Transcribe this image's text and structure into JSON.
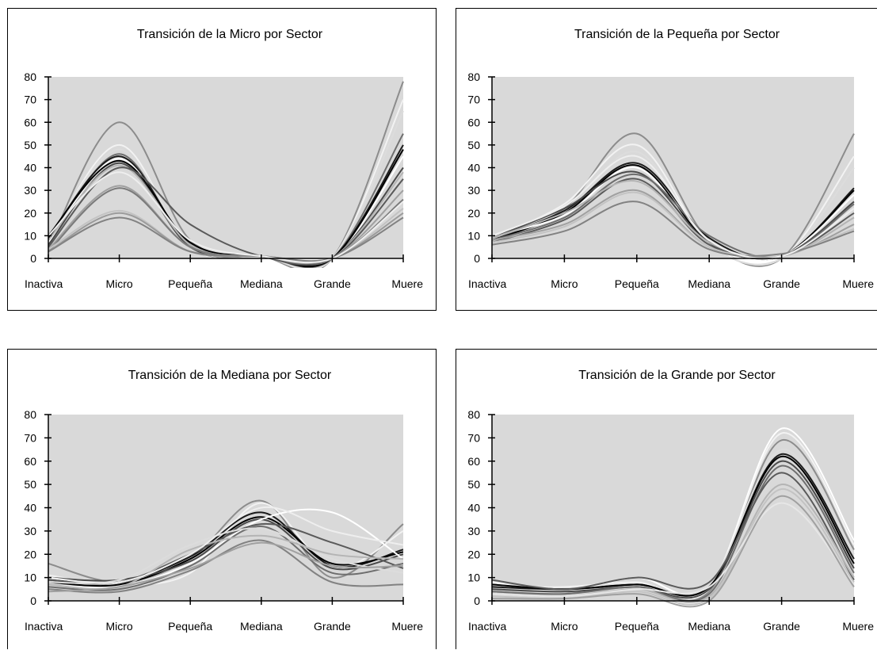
{
  "chart_data": [
    {
      "type": "line",
      "title": "Transición de la Micro por Sector",
      "categories": [
        "Inactiva",
        "Micro",
        "Pequeña",
        "Mediana",
        "Grande",
        "Muere"
      ],
      "ylim": [
        0,
        80
      ],
      "yticks": [
        0,
        10,
        20,
        30,
        40,
        50,
        60,
        70,
        80
      ],
      "grid": false,
      "plot_background": "#d9d9d9",
      "series": [
        {
          "values": [
            5,
            60,
            8,
            1,
            0,
            78
          ],
          "color": "#8c8c8c"
        },
        {
          "values": [
            7,
            50,
            5,
            1,
            0,
            70
          ],
          "color": "#f2f2f2"
        },
        {
          "values": [
            8,
            48,
            6,
            1,
            0,
            65
          ],
          "color": "#dcdcdc"
        },
        {
          "values": [
            6,
            46,
            5,
            1,
            0,
            55
          ],
          "color": "#6e6e6e"
        },
        {
          "values": [
            9,
            45,
            6,
            1,
            0,
            50
          ],
          "color": "#1a1a1a"
        },
        {
          "values": [
            7,
            44,
            5,
            1,
            0,
            45
          ],
          "color": "#ffffff"
        },
        {
          "values": [
            10,
            43,
            7,
            1,
            0,
            48
          ],
          "color": "#000000"
        },
        {
          "values": [
            6,
            42,
            5,
            1,
            0,
            40
          ],
          "color": "#4a4a4a"
        },
        {
          "values": [
            8,
            41,
            6,
            1,
            0,
            38
          ],
          "color": "#b4b4b4"
        },
        {
          "values": [
            5,
            40,
            15,
            1,
            0,
            35
          ],
          "color": "#5a5a5a"
        },
        {
          "values": [
            4,
            32,
            5,
            1,
            0,
            30
          ],
          "color": "#a0a0a0"
        },
        {
          "values": [
            3,
            31,
            5,
            1,
            0,
            26
          ],
          "color": "#7a7a7a"
        },
        {
          "values": [
            4,
            21,
            3,
            1,
            0,
            22
          ],
          "color": "#c3c3c3"
        },
        {
          "values": [
            3,
            20,
            3,
            1,
            0,
            20
          ],
          "color": "#9b9b9b"
        },
        {
          "values": [
            3,
            18,
            3,
            1,
            0,
            18
          ],
          "color": "#828282"
        },
        {
          "values": [
            10,
            38,
            8,
            1,
            0,
            25
          ],
          "color": "#eeeeee"
        }
      ]
    },
    {
      "type": "line",
      "title": "Transición de la Pequeña por Sector",
      "categories": [
        "Inactiva",
        "Micro",
        "Pequeña",
        "Mediana",
        "Grande",
        "Muere"
      ],
      "ylim": [
        0,
        80
      ],
      "yticks": [
        0,
        10,
        20,
        30,
        40,
        50,
        60,
        70,
        80
      ],
      "grid": false,
      "plot_background": "#d9d9d9",
      "series": [
        {
          "values": [
            8,
            22,
            55,
            8,
            0,
            55
          ],
          "color": "#8c8c8c"
        },
        {
          "values": [
            9,
            24,
            50,
            7,
            0,
            45
          ],
          "color": "#f2f2f2"
        },
        {
          "values": [
            10,
            20,
            47,
            6,
            0,
            40
          ],
          "color": "#dcdcdc"
        },
        {
          "values": [
            9,
            21,
            42,
            9,
            1,
            31
          ],
          "color": "#1a1a1a"
        },
        {
          "values": [
            8,
            20,
            41,
            7,
            1,
            30
          ],
          "color": "#000000"
        },
        {
          "values": [
            10,
            19,
            40,
            6,
            1,
            28
          ],
          "color": "#ffffff"
        },
        {
          "values": [
            9,
            22,
            38,
            7,
            1,
            25
          ],
          "color": "#4a4a4a"
        },
        {
          "values": [
            8,
            18,
            37,
            10,
            1,
            24
          ],
          "color": "#6e6e6e"
        },
        {
          "values": [
            7,
            17,
            35,
            6,
            1,
            20
          ],
          "color": "#5a5a5a"
        },
        {
          "values": [
            9,
            20,
            34,
            7,
            1,
            18
          ],
          "color": "#b4b4b4"
        },
        {
          "values": [
            8,
            15,
            30,
            5,
            1,
            15
          ],
          "color": "#a0a0a0"
        },
        {
          "values": [
            7,
            14,
            29,
            5,
            2,
            13
          ],
          "color": "#c3c3c3"
        },
        {
          "values": [
            6,
            12,
            25,
            4,
            2,
            12
          ],
          "color": "#828282"
        },
        {
          "values": [
            10,
            23,
            45,
            8,
            1,
            22
          ],
          "color": "#eeeeee"
        }
      ]
    },
    {
      "type": "line",
      "title": "Transición de la Mediana por Sector",
      "categories": [
        "Inactiva",
        "Micro",
        "Pequeña",
        "Mediana",
        "Grande",
        "Muere"
      ],
      "ylim": [
        0,
        80
      ],
      "yticks": [
        0,
        10,
        20,
        30,
        40,
        50,
        60,
        70,
        80
      ],
      "grid": false,
      "plot_background": "#d9d9d9",
      "series": [
        {
          "values": [
            16,
            8,
            18,
            43,
            10,
            33
          ],
          "color": "#8c8c8c"
        },
        {
          "values": [
            11,
            7,
            12,
            42,
            14,
            30
          ],
          "color": "#f2f2f2"
        },
        {
          "values": [
            9,
            8,
            19,
            38,
            15,
            22
          ],
          "color": "#1a1a1a"
        },
        {
          "values": [
            8,
            7,
            18,
            36,
            16,
            21
          ],
          "color": "#000000"
        },
        {
          "values": [
            10,
            9,
            17,
            35,
            14,
            20
          ],
          "color": "#4a4a4a"
        },
        {
          "values": [
            7,
            6,
            16,
            35,
            38,
            18
          ],
          "color": "#ffffff"
        },
        {
          "values": [
            9,
            8,
            20,
            33,
            25,
            14
          ],
          "color": "#5a5a5a"
        },
        {
          "values": [
            6,
            5,
            15,
            32,
            12,
            16
          ],
          "color": "#6e6e6e"
        },
        {
          "values": [
            8,
            9,
            24,
            31,
            18,
            12
          ],
          "color": "#dcdcdc"
        },
        {
          "values": [
            5,
            4,
            13,
            26,
            8,
            7
          ],
          "color": "#828282"
        },
        {
          "values": [
            7,
            6,
            22,
            28,
            20,
            18
          ],
          "color": "#b4b4b4"
        },
        {
          "values": [
            4,
            6,
            14,
            25,
            15,
            15
          ],
          "color": "#a0a0a0"
        },
        {
          "values": [
            10,
            8,
            20,
            40,
            30,
            24
          ],
          "color": "#eeeeee"
        }
      ]
    },
    {
      "type": "line",
      "title": "Transición de la Grande por Sector",
      "categories": [
        "Inactiva",
        "Micro",
        "Pequeña",
        "Mediana",
        "Grande",
        "Muere"
      ],
      "ylim": [
        0,
        80
      ],
      "yticks": [
        0,
        10,
        20,
        30,
        40,
        50,
        60,
        70,
        80
      ],
      "grid": false,
      "plot_background": "#d9d9d9",
      "series": [
        {
          "values": [
            8,
            4,
            10,
            6,
            74,
            26
          ],
          "color": "#ffffff"
        },
        {
          "values": [
            6,
            6,
            8,
            5,
            72,
            24
          ],
          "color": "#f2f2f2"
        },
        {
          "values": [
            4,
            3,
            7,
            4,
            69,
            22
          ],
          "color": "#8c8c8c"
        },
        {
          "values": [
            5,
            4,
            6,
            7,
            65,
            20
          ],
          "color": "#dcdcdc"
        },
        {
          "values": [
            6,
            5,
            7,
            6,
            63,
            18
          ],
          "color": "#1a1a1a"
        },
        {
          "values": [
            7,
            5,
            7,
            6,
            62,
            16
          ],
          "color": "#000000"
        },
        {
          "values": [
            5,
            4,
            6,
            5,
            60,
            14
          ],
          "color": "#4a4a4a"
        },
        {
          "values": [
            4,
            3,
            6,
            3,
            58,
            12
          ],
          "color": "#6e6e6e"
        },
        {
          "values": [
            9,
            5,
            10,
            8,
            55,
            9
          ],
          "color": "#5a5a5a"
        },
        {
          "values": [
            3,
            2,
            5,
            2,
            50,
            10
          ],
          "color": "#b4b4b4"
        },
        {
          "values": [
            2,
            1,
            4,
            1,
            48,
            8
          ],
          "color": "#c3c3c3"
        },
        {
          "values": [
            3,
            2,
            5,
            6,
            42,
            7
          ],
          "color": "#e6e6e6"
        },
        {
          "values": [
            1,
            1,
            3,
            0,
            45,
            6
          ],
          "color": "#a0a0a0"
        }
      ]
    }
  ]
}
